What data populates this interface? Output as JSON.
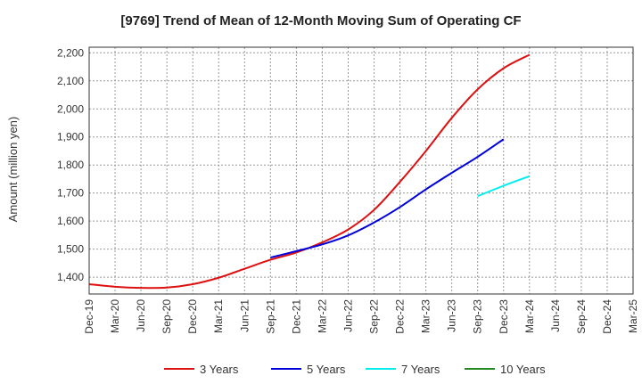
{
  "chart_data": {
    "type": "line",
    "title": "[9769]  Trend of Mean of 12-Month Moving Sum of Operating CF",
    "xlabel": "",
    "ylabel": "Amount (million yen)",
    "ylim": [
      1340,
      2220
    ],
    "yticks": [
      1400,
      1500,
      1600,
      1700,
      1800,
      1900,
      2000,
      2100,
      2200
    ],
    "ytick_labels": [
      "1,400",
      "1,500",
      "1,600",
      "1,700",
      "1,800",
      "1,900",
      "2,000",
      "2,100",
      "2,200"
    ],
    "x_tick_labels": [
      "Dec-19",
      "Mar-20",
      "Jun-20",
      "Sep-20",
      "Dec-20",
      "Mar-21",
      "Jun-21",
      "Sep-21",
      "Dec-21",
      "Mar-22",
      "Jun-22",
      "Sep-22",
      "Dec-22",
      "Mar-23",
      "Jun-23",
      "Sep-23",
      "Dec-23",
      "Mar-24",
      "Jun-24",
      "Sep-24",
      "Dec-24",
      "Mar-25"
    ],
    "grid": true,
    "legend_position": "bottom",
    "series": [
      {
        "name": "3 Years",
        "color": "#dd1111",
        "start_index": 0,
        "values": [
          1375,
          1366,
          1362,
          1363,
          1375,
          1398,
          1430,
          1462,
          1488,
          1524,
          1570,
          1640,
          1740,
          1850,
          1968,
          2070,
          2145,
          2193
        ]
      },
      {
        "name": "5 Years",
        "color": "#0000dd",
        "start_index": 7,
        "values": [
          1470,
          1493,
          1517,
          1549,
          1595,
          1650,
          1713,
          1772,
          1829,
          1892
        ]
      },
      {
        "name": "7 Years",
        "color": "#00eeee",
        "start_index": 15,
        "values": [
          1689,
          1726,
          1760
        ]
      },
      {
        "name": "10 Years",
        "color": "#228822",
        "start_index": 0,
        "values": []
      }
    ]
  }
}
